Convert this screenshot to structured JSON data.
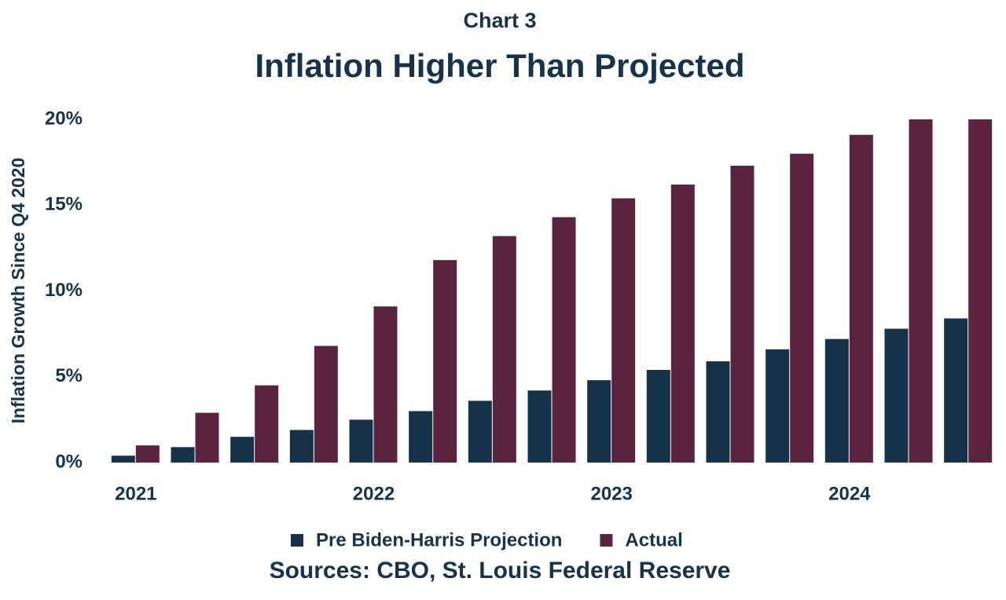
{
  "chart_data": {
    "type": "bar",
    "supertitle": "Chart 3",
    "title": "Inflation Higher Than Projected",
    "y_label": "Inflation Growth Since Q4 2020",
    "source": "Sources: CBO, St. Louis Federal Reserve",
    "categories": [
      "2021",
      null,
      null,
      null,
      "2022",
      null,
      null,
      null,
      "2023",
      null,
      null,
      null,
      "2024",
      null,
      null
    ],
    "series": [
      {
        "name": "Pre Biden-Harris Projection",
        "color": "#15324a",
        "values": [
          0.4,
          0.9,
          1.5,
          1.9,
          2.5,
          3.0,
          3.6,
          4.2,
          4.8,
          5.4,
          5.9,
          6.6,
          7.2,
          7.8,
          8.4
        ]
      },
      {
        "name": "Actual",
        "color": "#5a2440",
        "values": [
          1.0,
          2.9,
          4.5,
          6.8,
          9.1,
          11.8,
          13.2,
          14.3,
          15.4,
          16.2,
          17.3,
          18.0,
          19.1,
          20.0,
          20.0
        ]
      }
    ],
    "ylim": [
      0,
      20
    ],
    "yticks": [
      {
        "value": 0,
        "label": "0%"
      },
      {
        "value": 5,
        "label": "5%"
      },
      {
        "value": 10,
        "label": "10%"
      },
      {
        "value": 15,
        "label": "15%"
      },
      {
        "value": 20,
        "label": "20%"
      }
    ],
    "grid": false,
    "legend": "bottom"
  }
}
